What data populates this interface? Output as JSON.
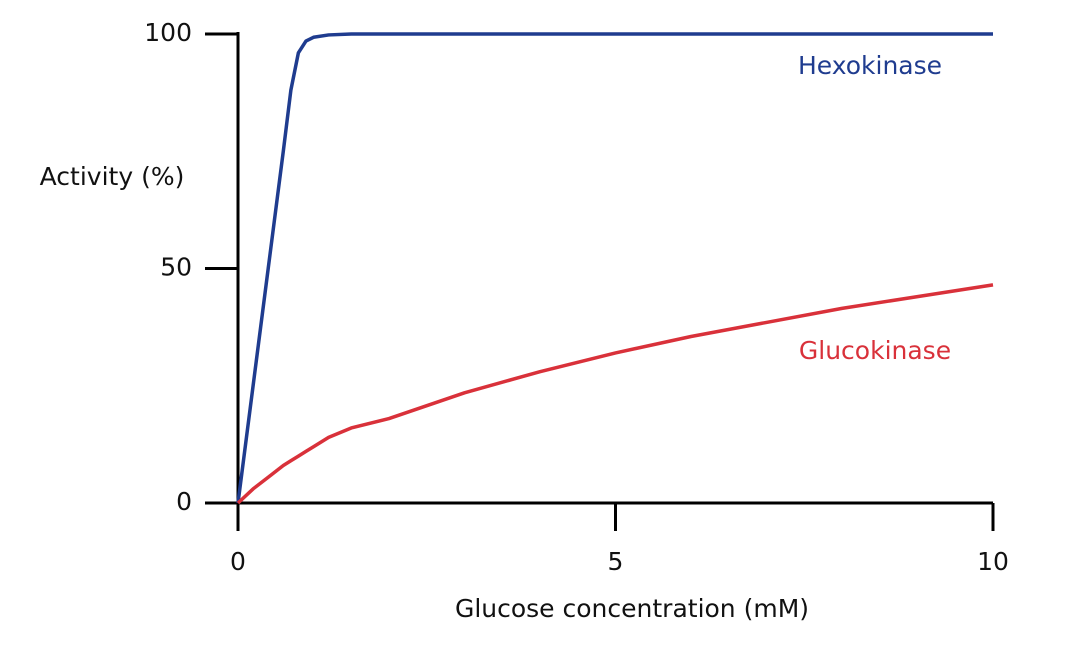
{
  "chart_data": {
    "type": "line",
    "x_label": "Glucose concentration (mM)",
    "y_label": "Activity (%)",
    "x": [
      0,
      0.2,
      0.4,
      0.6,
      0.7,
      0.8,
      0.9,
      1,
      1.2,
      1.5,
      2,
      3,
      4,
      5,
      6,
      7,
      8,
      9,
      10
    ],
    "series": [
      {
        "name": "Hexokinase",
        "color": "#1f3c8f",
        "values": [
          0,
          25,
          50,
          75,
          88,
          96,
          98.5,
          99.3,
          99.8,
          100,
          100,
          100,
          100,
          100,
          100,
          100,
          100,
          100,
          100
        ]
      },
      {
        "name": "Glucokinase",
        "color": "#d9313a",
        "values": [
          0,
          3,
          5.5,
          8,
          9,
          10,
          11,
          12,
          14,
          16,
          18,
          23.5,
          28,
          32,
          35.5,
          38.5,
          41.5,
          44,
          46.5
        ]
      }
    ],
    "xlim": [
      0,
      10
    ],
    "xticks": [
      0,
      5,
      10
    ],
    "ylim": [
      0,
      100
    ],
    "yticks": [
      0,
      50,
      100
    ]
  }
}
